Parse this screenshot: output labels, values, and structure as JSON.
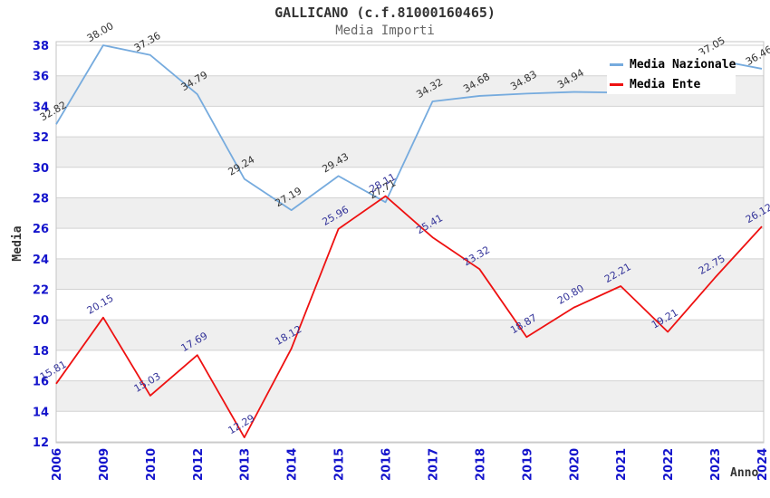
{
  "header": {
    "title": "GALLICANO (c.f.81000160465)",
    "subtitle": "Media Importi"
  },
  "axes": {
    "x_title": "Anno",
    "y_title": "Media"
  },
  "legend": {
    "position": "top-right",
    "items": [
      {
        "label": "Media Nazionale",
        "color": "#76abde"
      },
      {
        "label": "Media Ente",
        "color": "#ee1111"
      }
    ]
  },
  "colors": {
    "tick_label": "#1414cc",
    "grid_line": "#d2d2d2",
    "band_fill": "#efefef",
    "plot_border": "#c4c4c4",
    "title": "#333333",
    "subtitle": "#666666"
  },
  "chart_data": {
    "type": "line",
    "title": "GALLICANO (c.f.81000160465)",
    "subtitle": "Media Importi",
    "xlabel": "Anno",
    "ylabel": "Media",
    "ylim": [
      12,
      38.4
    ],
    "yticks": [
      12,
      14,
      16,
      18,
      20,
      22,
      24,
      26,
      28,
      30,
      32,
      34,
      36,
      38
    ],
    "grid": true,
    "background_bands": "alternating white and light-gray horizontal stripes every 2 units",
    "legend_position": "top-right",
    "categories": [
      "2006",
      "2009",
      "2010",
      "2012",
      "2013",
      "2014",
      "2015",
      "2016",
      "2017",
      "2018",
      "2019",
      "2020",
      "2021",
      "2022",
      "2023",
      "2024"
    ],
    "series": [
      {
        "name": "Media Nazionale",
        "color": "#76abde",
        "label_color": "#333333",
        "values": [
          32.82,
          38.0,
          37.36,
          34.79,
          29.24,
          27.19,
          29.43,
          27.71,
          34.32,
          34.68,
          34.83,
          34.94,
          34.9,
          34.85,
          37.05,
          36.46
        ],
        "labels": [
          "32.82",
          "38.00",
          "37.36",
          "34.79",
          "29.24",
          "27.19",
          "29.43",
          "27.71",
          "34.32",
          "34.68",
          "34.83",
          "34.94",
          "",
          "",
          "37.05",
          "36.46"
        ]
      },
      {
        "name": "Media Ente",
        "color": "#ee1111",
        "label_color": "#333399",
        "values": [
          15.81,
          20.15,
          15.03,
          17.69,
          12.29,
          18.12,
          25.96,
          28.11,
          25.41,
          23.32,
          18.87,
          20.8,
          22.21,
          19.21,
          22.75,
          26.12
        ],
        "labels": [
          "15.81",
          "20.15",
          "15.03",
          "17.69",
          "12.29",
          "18.12",
          "25.96",
          "28.11",
          "25.41",
          "23.32",
          "18.87",
          "20.80",
          "22.21",
          "19.21",
          "22.75",
          "26.12"
        ]
      }
    ]
  }
}
